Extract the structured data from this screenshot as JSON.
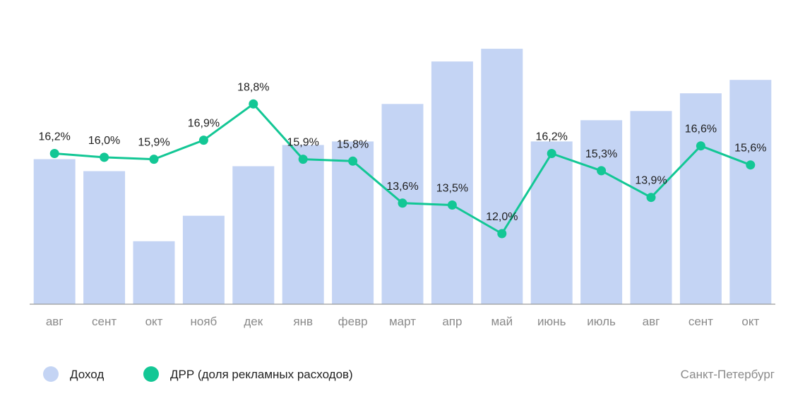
{
  "chart_data": {
    "type": "bar",
    "categories": [
      "авг",
      "сент",
      "окт",
      "нояб",
      "дек",
      "янв",
      "февр",
      "март",
      "апр",
      "май",
      "июнь",
      "июль",
      "авг",
      "сент",
      "окт"
    ],
    "series": [
      {
        "name": "Доход",
        "type": "bar",
        "color": "#c4d4f4",
        "values": [
          205,
          188,
          89,
          125,
          195,
          225,
          230,
          283,
          343,
          361,
          230,
          260,
          273,
          298,
          317
        ]
      },
      {
        "name": "ДРР (доля рекламных расходов)",
        "type": "line",
        "color": "#13c795",
        "values": [
          16.2,
          16.0,
          15.9,
          16.9,
          18.8,
          15.9,
          15.8,
          13.6,
          13.5,
          12.0,
          16.2,
          15.3,
          13.9,
          16.6,
          15.6
        ],
        "labels": [
          "16,2%",
          "16,0%",
          "15,9%",
          "16,9%",
          "18,8%",
          "15,9%",
          "15,8%",
          "13,6%",
          "13,5%",
          "12,0%",
          "16,2%",
          "15,3%",
          "13,9%",
          "16,6%",
          "15,6%"
        ]
      }
    ],
    "title": "",
    "xlabel": "",
    "ylabel": "",
    "bar_ylim": [
      0,
      380
    ],
    "line_ylim": [
      8.3,
      22.4
    ],
    "grid": false,
    "legend_position": "bottom-left"
  },
  "legend": [
    {
      "label": "Доход",
      "color": "#c4d4f4"
    },
    {
      "label": "ДРР (доля рекламных расходов)",
      "color": "#13c795"
    }
  ],
  "city": "Санкт-Петербург",
  "colors": {
    "axis": "#9a9a9a",
    "tick_text": "#8a8a8a",
    "label_text": "#1e1e1e"
  }
}
